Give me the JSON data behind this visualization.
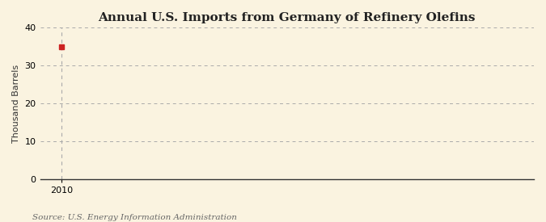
{
  "title": "Annual U.S. Imports from Germany of Refinery Olefins",
  "ylabel": "Thousand Barrels",
  "source_text": "Source: U.S. Energy Information Administration",
  "x_data": [
    2010
  ],
  "y_data": [
    35
  ],
  "marker_color": "#cc2222",
  "marker_size": 4,
  "xlim": [
    2009.4,
    2023
  ],
  "ylim": [
    0,
    40
  ],
  "yticks": [
    0,
    10,
    20,
    30,
    40
  ],
  "xticks": [
    2010
  ],
  "background_color": "#faf3e0",
  "grid_color": "#aaaaaa",
  "vline_color": "#aaaaaa",
  "title_fontsize": 11,
  "label_fontsize": 8,
  "tick_fontsize": 8,
  "source_fontsize": 7.5
}
